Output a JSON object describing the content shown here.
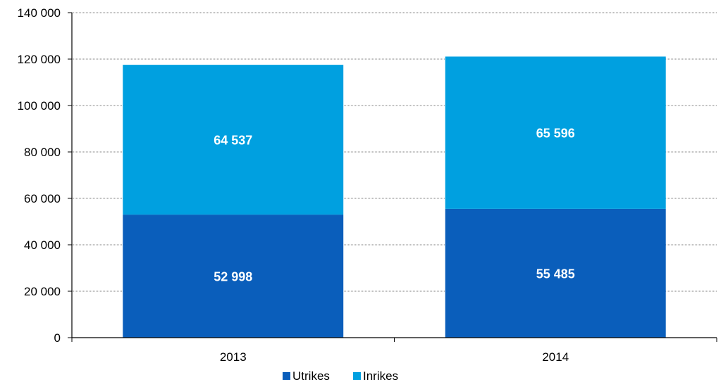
{
  "chart_data": {
    "type": "bar",
    "stacked": true,
    "categories": [
      "2013",
      "2014"
    ],
    "series": [
      {
        "name": "Utrikes",
        "color": "#0A5EBB",
        "values": [
          52998,
          55485
        ],
        "labels": [
          "52 998",
          "55 485"
        ]
      },
      {
        "name": "Inrikes",
        "color": "#00A0E0",
        "values": [
          64537,
          65596
        ],
        "labels": [
          "64 537",
          "65 596"
        ]
      }
    ],
    "ylim": [
      0,
      140000
    ],
    "yticks": [
      0,
      20000,
      40000,
      60000,
      80000,
      100000,
      120000,
      140000
    ],
    "ytick_labels": [
      "0",
      "20 000",
      "40 000",
      "60 000",
      "80 000",
      "100 000",
      "120 000",
      "140 000"
    ],
    "grid": true,
    "legend_position": "bottom"
  }
}
